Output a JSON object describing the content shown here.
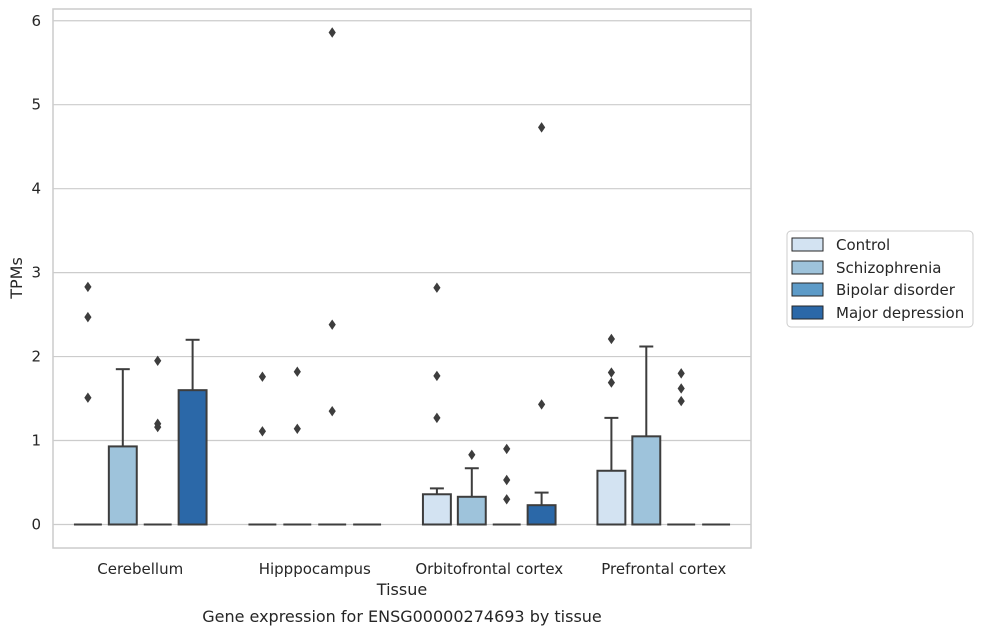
{
  "chart_data": {
    "type": "box",
    "xlabel": "Tissue",
    "ylabel": "TPMs",
    "caption": "Gene expression for ENSG00000274693 by tissue",
    "ylim": [
      -0.28,
      6.14
    ],
    "yticks": [
      0,
      1,
      2,
      3,
      4,
      5,
      6
    ],
    "grid": "horizontal",
    "legend_position": "right",
    "categories": [
      "Cerebellum",
      "Hipppocampus",
      "Orbitofrontal cortex",
      "Prefrontal cortex"
    ],
    "series": [
      {
        "name": "Control",
        "color": "#d3e3f2",
        "boxes": [
          {
            "q1": 0,
            "median": 0,
            "q3": 0,
            "whisker_low": 0,
            "whisker_high": 0,
            "outliers": [
              2.83,
              2.47,
              1.51
            ]
          },
          {
            "q1": 0,
            "median": 0,
            "q3": 0,
            "whisker_low": 0,
            "whisker_high": 0,
            "outliers": [
              1.76,
              1.11
            ]
          },
          {
            "q1": 0,
            "median": 0,
            "q3": 0.36,
            "whisker_low": 0,
            "whisker_high": 0.43,
            "outliers": [
              2.82,
              1.77,
              1.27
            ]
          },
          {
            "q1": 0,
            "median": 0,
            "q3": 0.64,
            "whisker_low": 0,
            "whisker_high": 1.27,
            "outliers": [
              2.21,
              1.81,
              1.69
            ]
          }
        ]
      },
      {
        "name": "Schizophrenia",
        "color": "#9ec3db",
        "boxes": [
          {
            "q1": 0,
            "median": 0,
            "q3": 0.93,
            "whisker_low": 0,
            "whisker_high": 1.85,
            "outliers": []
          },
          {
            "q1": 0,
            "median": 0,
            "q3": 0,
            "whisker_low": 0,
            "whisker_high": 0,
            "outliers": [
              1.82,
              1.14
            ]
          },
          {
            "q1": 0,
            "median": 0,
            "q3": 0.33,
            "whisker_low": 0,
            "whisker_high": 0.67,
            "outliers": [
              0.83
            ]
          },
          {
            "q1": 0,
            "median": 0,
            "q3": 1.05,
            "whisker_low": 0,
            "whisker_high": 2.12,
            "outliers": []
          }
        ]
      },
      {
        "name": "Bipolar disorder",
        "color": "#5d9bc8",
        "boxes": [
          {
            "q1": 0,
            "median": 0,
            "q3": 0,
            "whisker_low": 0,
            "whisker_high": 0,
            "outliers": [
              1.95,
              1.2,
              1.16
            ]
          },
          {
            "q1": 0,
            "median": 0,
            "q3": 0,
            "whisker_low": 0,
            "whisker_high": 0,
            "outliers": [
              5.86,
              2.38,
              1.35
            ]
          },
          {
            "q1": 0,
            "median": 0,
            "q3": 0,
            "whisker_low": 0,
            "whisker_high": 0,
            "outliers": [
              0.9,
              0.53,
              0.3
            ]
          },
          {
            "q1": 0,
            "median": 0,
            "q3": 0,
            "whisker_low": 0,
            "whisker_high": 0,
            "outliers": [
              1.8,
              1.62,
              1.47
            ]
          }
        ]
      },
      {
        "name": "Major depression",
        "color": "#2b68a8",
        "boxes": [
          {
            "q1": 0,
            "median": 0,
            "q3": 1.6,
            "whisker_low": 0,
            "whisker_high": 2.2,
            "outliers": []
          },
          {
            "q1": 0,
            "median": 0,
            "q3": 0,
            "whisker_low": 0,
            "whisker_high": 0,
            "outliers": []
          },
          {
            "q1": 0,
            "median": 0,
            "q3": 0.23,
            "whisker_low": 0,
            "whisker_high": 0.38,
            "outliers": [
              4.73,
              1.43
            ]
          },
          {
            "q1": 0,
            "median": 0,
            "q3": 0,
            "whisker_low": 0,
            "whisker_high": 0,
            "outliers": []
          }
        ]
      }
    ]
  }
}
